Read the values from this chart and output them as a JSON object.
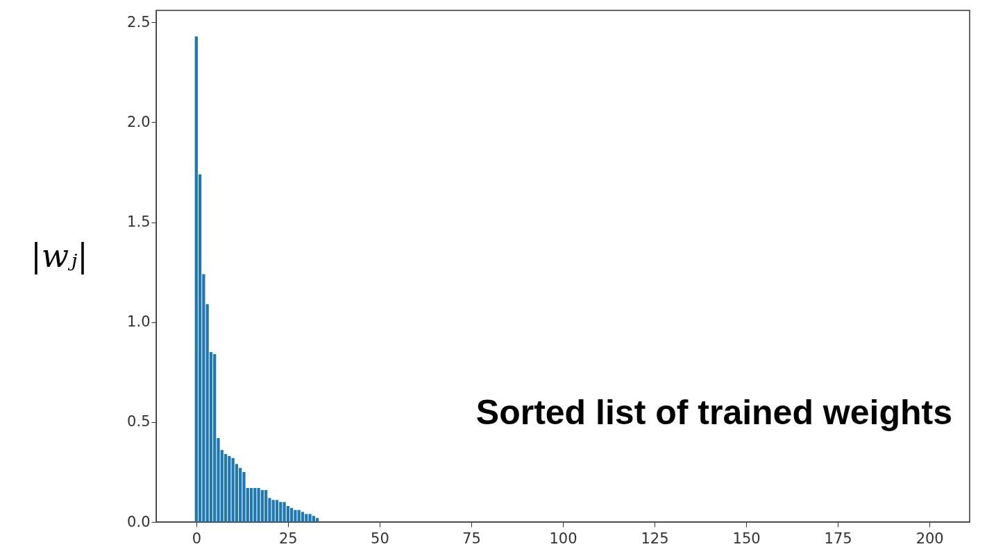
{
  "chart_data": {
    "type": "bar",
    "ylabel": "|wⱼ|",
    "annotations": [
      "Sorted list of trained weights"
    ],
    "x": [
      0,
      1,
      2,
      3,
      4,
      5,
      6,
      7,
      8,
      9,
      10,
      11,
      12,
      13,
      14,
      15,
      16,
      17,
      18,
      19,
      20,
      21,
      22,
      23,
      24,
      25,
      26,
      27,
      28,
      29,
      30,
      31,
      32,
      33
    ],
    "values": [
      2.43,
      1.74,
      1.24,
      1.09,
      0.85,
      0.84,
      0.42,
      0.36,
      0.34,
      0.33,
      0.32,
      0.29,
      0.27,
      0.25,
      0.17,
      0.17,
      0.17,
      0.17,
      0.16,
      0.16,
      0.12,
      0.11,
      0.11,
      0.1,
      0.1,
      0.08,
      0.07,
      0.06,
      0.06,
      0.05,
      0.04,
      0.04,
      0.03,
      0.02
    ],
    "color": "#1f77b4",
    "xlim": [
      -10,
      210
    ],
    "xticks": [
      0,
      25,
      50,
      75,
      100,
      125,
      150,
      175,
      200
    ],
    "ylim": [
      0,
      2.56
    ],
    "yticks": [
      {
        "value": 0,
        "label": "0.0"
      },
      {
        "value": 0.5,
        "label": "0.5"
      },
      {
        "value": 1,
        "label": "1.0"
      },
      {
        "value": 1.5,
        "label": "1.5"
      },
      {
        "value": 2,
        "label": "2.0"
      },
      {
        "value": 2.5,
        "label": "2.5"
      }
    ],
    "grid": false
  }
}
